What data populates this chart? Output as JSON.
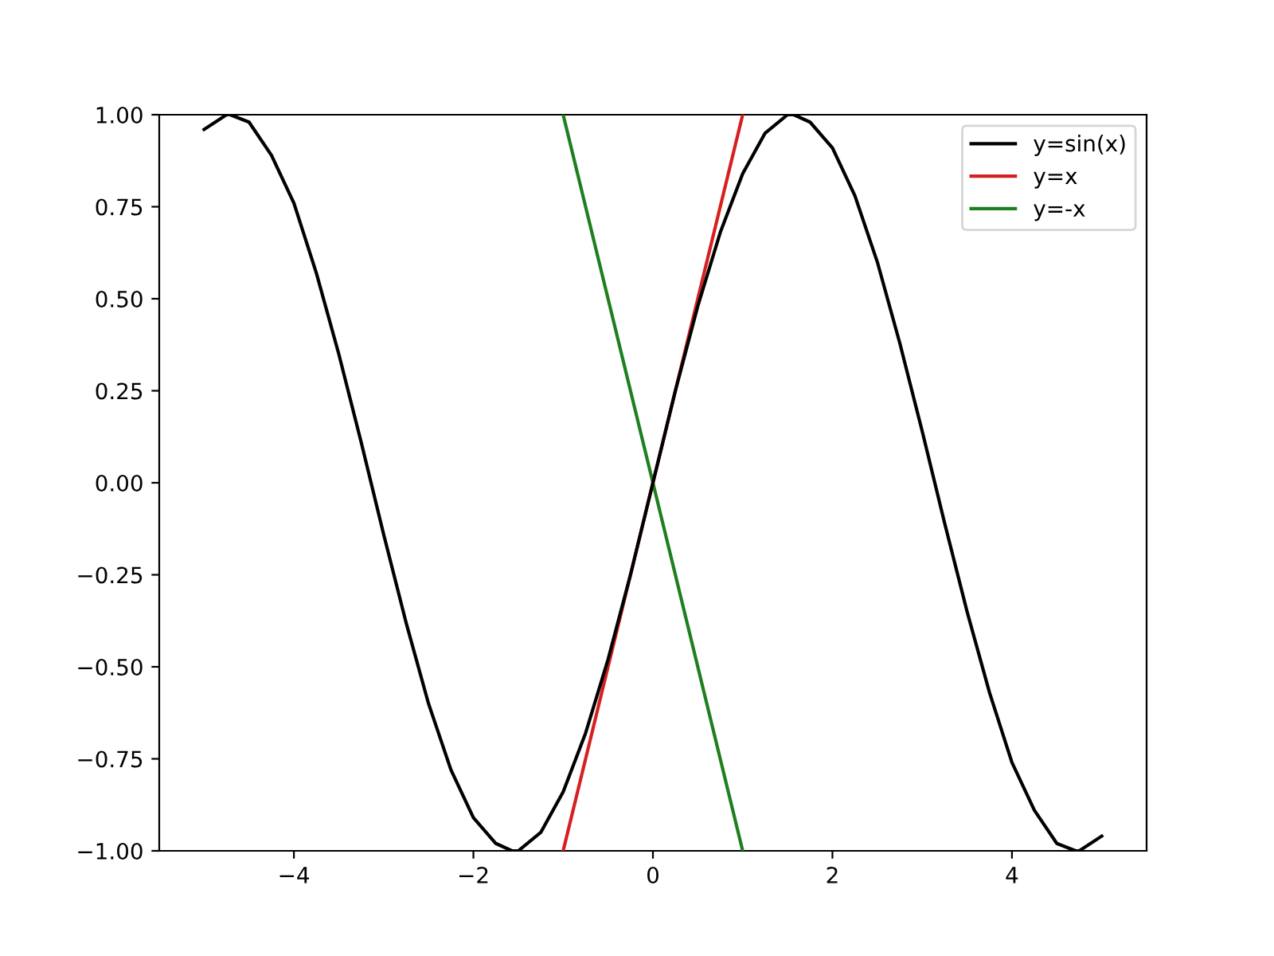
{
  "chart_data": {
    "type": "line",
    "series": [
      {
        "name": "y=sin(x)",
        "color": "#000000",
        "x": [
          -5,
          -4.75,
          -4.71,
          -4.5,
          -4.25,
          -4,
          -3.75,
          -3.5,
          -3.25,
          -3,
          -2.75,
          -2.5,
          -2.25,
          -2,
          -1.75,
          -1.57,
          -1.5,
          -1.25,
          -1,
          -0.75,
          -0.5,
          -0.25,
          0,
          0.25,
          0.5,
          0.75,
          1,
          1.25,
          1.5,
          1.57,
          1.75,
          2,
          2.25,
          2.5,
          2.75,
          3,
          3.25,
          3.5,
          3.75,
          4,
          4.25,
          4.5,
          4.71,
          4.75,
          5
        ],
        "values": [
          0.96,
          1.0,
          1.0,
          0.98,
          0.89,
          0.76,
          0.57,
          0.35,
          0.11,
          -0.14,
          -0.38,
          -0.6,
          -0.78,
          -0.91,
          -0.98,
          -1.0,
          -1.0,
          -0.95,
          -0.84,
          -0.68,
          -0.48,
          -0.25,
          0,
          0.25,
          0.48,
          0.68,
          0.84,
          0.95,
          1.0,
          1.0,
          0.98,
          0.91,
          0.78,
          0.6,
          0.38,
          0.14,
          -0.11,
          -0.35,
          -0.57,
          -0.76,
          -0.89,
          -0.98,
          -1.0,
          -1.0,
          -0.96
        ]
      },
      {
        "name": "y=x",
        "color": "#d62020",
        "x": [
          -1,
          1
        ],
        "values": [
          -1,
          1
        ]
      },
      {
        "name": "y=-x",
        "color": "#1f7f1f",
        "x": [
          -1,
          1
        ],
        "values": [
          1,
          -1
        ]
      }
    ],
    "xlim": [
      -5.5,
      5.5
    ],
    "xticks": [
      {
        "value": -4,
        "label": "−4"
      },
      {
        "value": -2,
        "label": "−2"
      },
      0,
      2,
      4
    ],
    "ylim": [
      -1,
      1
    ],
    "yticks": [
      {
        "value": -1,
        "label": "−1.00"
      },
      {
        "value": -0.75,
        "label": "−0.75"
      },
      {
        "value": -0.5,
        "label": "−0.50"
      },
      {
        "value": -0.25,
        "label": "−0.25"
      },
      {
        "value": 0,
        "label": "0.00"
      },
      {
        "value": 0.25,
        "label": "0.25"
      },
      {
        "value": 0.5,
        "label": "0.50"
      },
      {
        "value": 0.75,
        "label": "0.75"
      },
      {
        "value": 1,
        "label": "1.00"
      }
    ],
    "legend": "top right",
    "grid": false
  }
}
